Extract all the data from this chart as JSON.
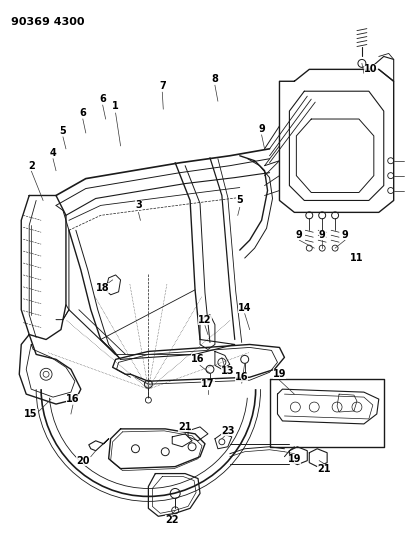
{
  "title": "90369 4300",
  "bg_color": "#ffffff",
  "line_color": "#1a1a1a",
  "fig_width": 4.06,
  "fig_height": 5.33,
  "dpi": 100
}
